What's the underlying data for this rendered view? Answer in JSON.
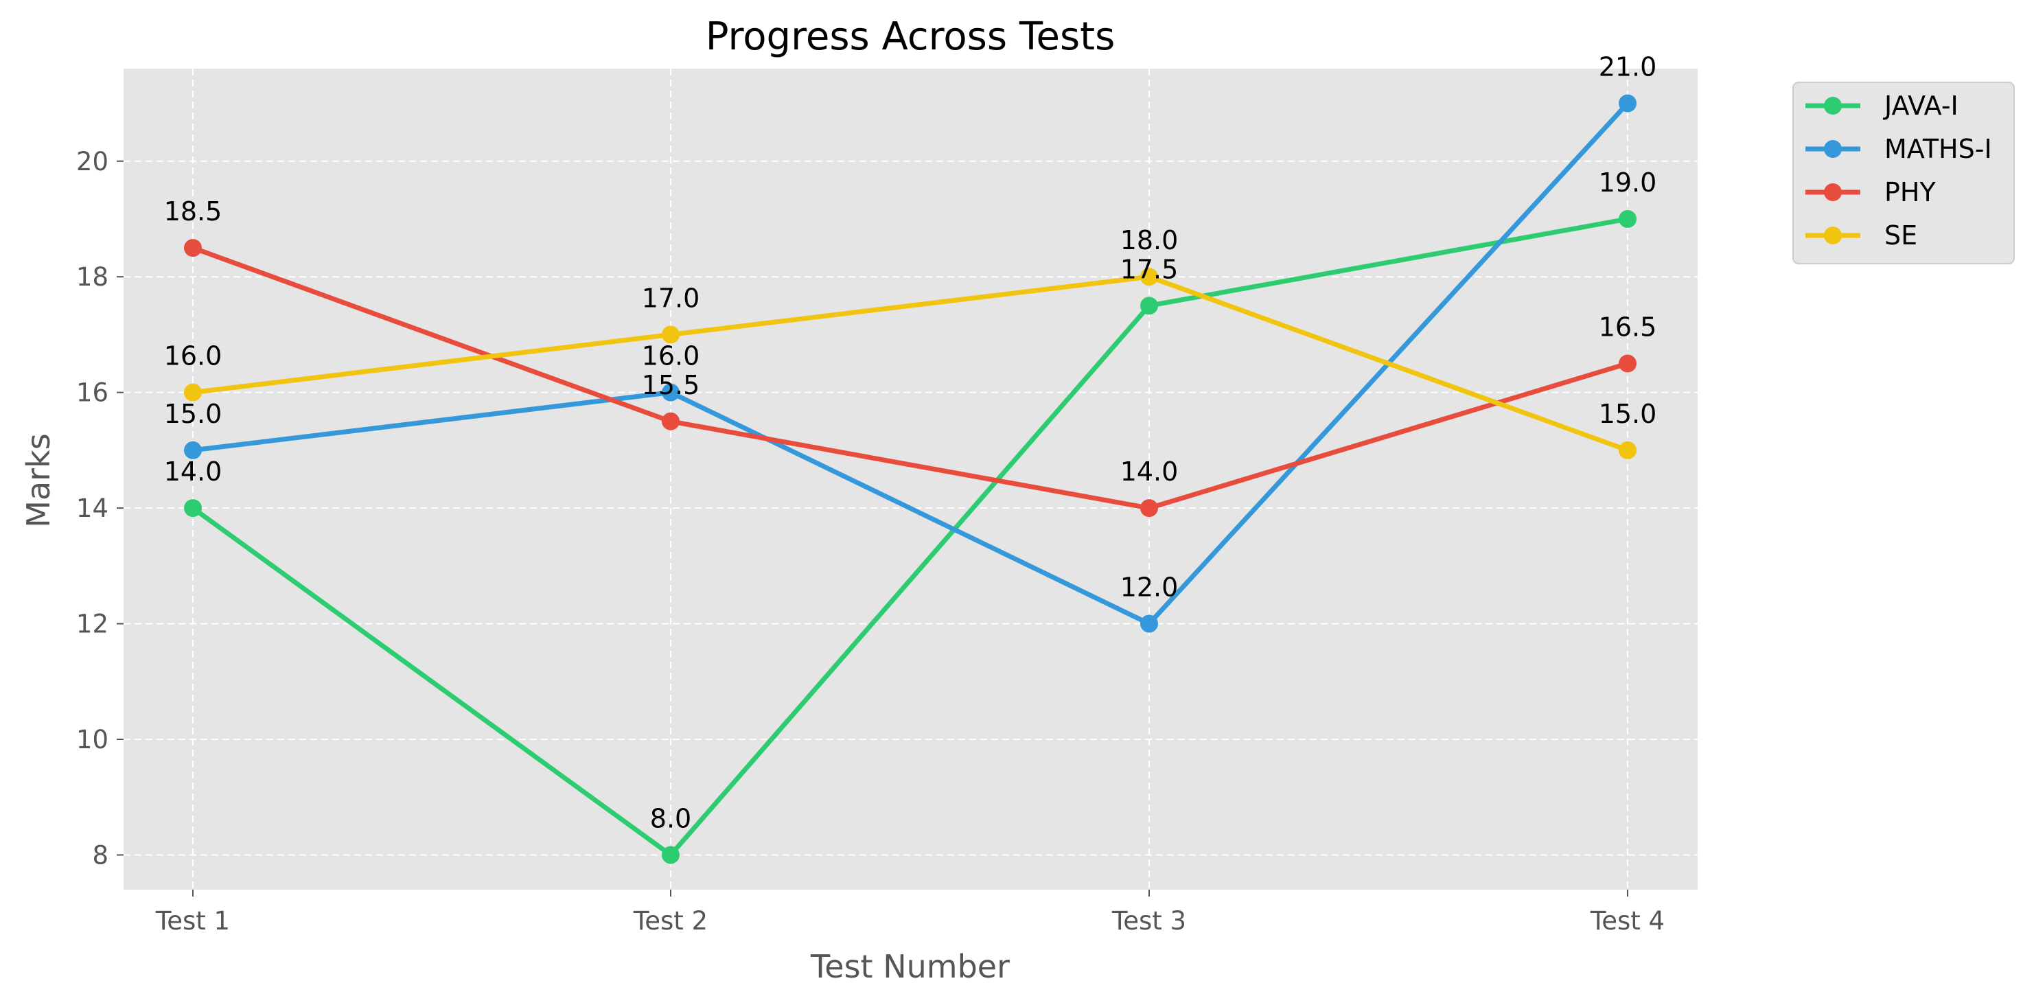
{
  "chart_data": {
    "type": "line",
    "title": "Progress Across Tests",
    "xlabel": "Test Number",
    "ylabel": "Marks",
    "categories": [
      "Test 1",
      "Test 2",
      "Test 3",
      "Test 4"
    ],
    "ylim": [
      7.4,
      21.6
    ],
    "yticks": [
      8,
      10,
      12,
      14,
      16,
      18,
      20
    ],
    "grid": true,
    "legend_position": "outside top-right",
    "series": [
      {
        "name": "JAVA-I",
        "color": "#2ecc71",
        "values": [
          14.0,
          8.0,
          17.5,
          19.0
        ],
        "labels": [
          "14.0",
          "8.0",
          "17.5",
          "19.0"
        ]
      },
      {
        "name": "MATHS-I",
        "color": "#3498db",
        "values": [
          15.0,
          16.0,
          12.0,
          21.0
        ],
        "labels": [
          "15.0",
          "16.0",
          "12.0",
          "21.0"
        ]
      },
      {
        "name": "PHY",
        "color": "#e74c3c",
        "values": [
          18.5,
          15.5,
          14.0,
          16.5
        ],
        "labels": [
          "18.5",
          "15.5",
          "14.0",
          "16.5"
        ]
      },
      {
        "name": "SE",
        "color": "#f1c40f",
        "values": [
          16.0,
          17.0,
          18.0,
          15.0
        ],
        "labels": [
          "16.0",
          "17.0",
          "18.0",
          "15.0"
        ]
      }
    ]
  }
}
